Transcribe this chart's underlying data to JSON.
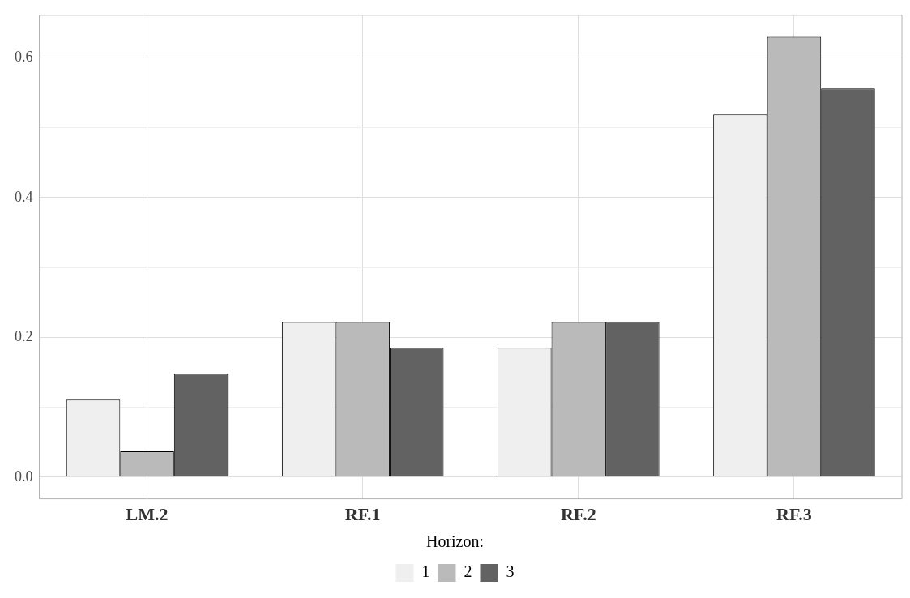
{
  "chart_data": {
    "type": "bar",
    "categories": [
      "LM.2",
      "RF.1",
      "RF.2",
      "RF.3"
    ],
    "series": [
      {
        "name": "1",
        "color": "#efefef",
        "values": [
          0.111,
          0.222,
          0.185,
          0.519
        ]
      },
      {
        "name": "2",
        "color": "#bababa",
        "values": [
          0.037,
          0.222,
          0.222,
          0.63
        ]
      },
      {
        "name": "3",
        "color": "#626262",
        "values": [
          0.148,
          0.185,
          0.222,
          0.556
        ]
      }
    ],
    "legend_title": "Horizon:",
    "legend": "bottom",
    "grid": true,
    "ylim": [
      -0.031,
      0.661
    ],
    "yticks": [
      {
        "value": 0,
        "label": "0.0"
      },
      {
        "value": 0.1,
        "label": null
      },
      {
        "value": 0.2,
        "label": "0.2"
      },
      {
        "value": 0.3,
        "label": null
      },
      {
        "value": 0.4,
        "label": "0.4"
      },
      {
        "value": 0.5,
        "label": null
      },
      {
        "value": 0.6,
        "label": "0.6"
      }
    ]
  }
}
